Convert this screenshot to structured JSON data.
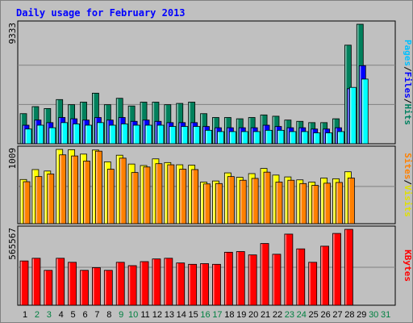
{
  "chart_data": [
    {
      "type": "bar",
      "title": "Daily usage for February 2013",
      "categories": [
        "1",
        "2",
        "3",
        "4",
        "5",
        "6",
        "7",
        "8",
        "9",
        "10",
        "11",
        "12",
        "13",
        "14",
        "15",
        "16",
        "17",
        "18",
        "19",
        "20",
        "21",
        "22",
        "23",
        "24",
        "25",
        "26",
        "27",
        "28",
        "29",
        "30",
        "31"
      ],
      "weekend_days": [
        "2",
        "3",
        "9",
        "10",
        "16",
        "17",
        "23",
        "24",
        "30",
        "31"
      ],
      "ymax_label": "9333",
      "ymax": 9333,
      "side_labels": [
        "Pages",
        "Files",
        "Hits"
      ],
      "series": [
        {
          "name": "Hits",
          "color": "#00805c",
          "values": [
            2350,
            2900,
            2750,
            3450,
            3050,
            3250,
            3950,
            3050,
            3550,
            2950,
            3250,
            3250,
            3050,
            3150,
            3250,
            2350,
            2050,
            2050,
            1950,
            2050,
            2250,
            2150,
            1850,
            1750,
            1650,
            1650,
            1950,
            7700,
            9333,
            0,
            0
          ]
        },
        {
          "name": "Files",
          "color": "#0000ff",
          "values": [
            1450,
            1850,
            1650,
            2050,
            1950,
            1850,
            2050,
            1850,
            2050,
            1750,
            1850,
            1750,
            1650,
            1650,
            1650,
            1350,
            1250,
            1250,
            1250,
            1250,
            1450,
            1350,
            1250,
            1250,
            1150,
            1150,
            1250,
            4300,
            6100,
            0,
            0
          ]
        },
        {
          "name": "Pages",
          "color": "#00ffff",
          "values": [
            1150,
            1450,
            1250,
            1650,
            1550,
            1450,
            1650,
            1450,
            1550,
            1450,
            1450,
            1450,
            1350,
            1350,
            1350,
            1050,
            950,
            950,
            950,
            950,
            1050,
            1050,
            950,
            950,
            850,
            850,
            950,
            4400,
            5050,
            0,
            0
          ]
        }
      ]
    },
    {
      "type": "bar",
      "ymax_label": "1009",
      "ymax": 1009,
      "side_labels": [
        "Sites",
        "Visits"
      ],
      "series": [
        {
          "name": "Visits",
          "color": "#ffff00",
          "values": [
            600,
            735,
            715,
            1009,
            1005,
            945,
            1000,
            840,
            930,
            810,
            790,
            880,
            830,
            800,
            795,
            565,
            580,
            690,
            630,
            680,
            750,
            660,
            635,
            595,
            565,
            620,
            610,
            705,
            0,
            0,
            0
          ]
        },
        {
          "name": "Sites",
          "color": "#ff8000",
          "values": [
            570,
            640,
            675,
            935,
            920,
            850,
            985,
            740,
            890,
            695,
            770,
            815,
            800,
            740,
            735,
            540,
            545,
            640,
            590,
            615,
            700,
            565,
            590,
            545,
            520,
            550,
            560,
            620,
            0,
            0,
            0
          ]
        }
      ]
    },
    {
      "type": "bar",
      "ymax_label": "565567",
      "ymax": 565567,
      "side_labels": [
        "KBytes"
      ],
      "series": [
        {
          "name": "KBytes",
          "color": "#ff0000",
          "values": [
            330000,
            350000,
            260000,
            350000,
            320000,
            260000,
            280000,
            260000,
            320000,
            295000,
            325000,
            345000,
            350000,
            315000,
            305000,
            310000,
            305000,
            395000,
            400000,
            375000,
            460000,
            380000,
            530000,
            420000,
            320000,
            440000,
            535000,
            565567,
            0,
            0,
            0
          ]
        }
      ]
    }
  ],
  "colors": {
    "title": "#0000ff",
    "panel_bg": "#c0c0c0",
    "frame_bg": "#ffffff",
    "weekday_tick": "#000000",
    "weekend_tick": "#008040"
  }
}
